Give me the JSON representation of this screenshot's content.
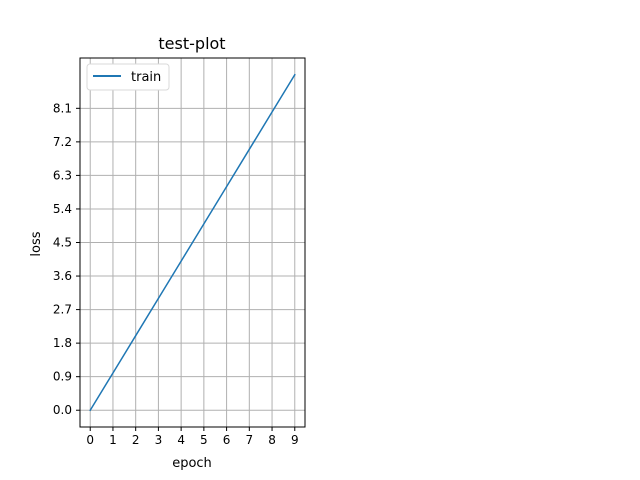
{
  "chart_data": {
    "type": "line",
    "title": "test-plot",
    "xlabel": "epoch",
    "ylabel": "loss",
    "x": [
      0,
      1,
      2,
      3,
      4,
      5,
      6,
      7,
      8,
      9
    ],
    "series": [
      {
        "name": "train",
        "color": "#1f77b4",
        "values": [
          0,
          1,
          2,
          3,
          4,
          5,
          6,
          7,
          8,
          9
        ]
      }
    ],
    "x_ticks": [
      0,
      1,
      2,
      3,
      4,
      5,
      6,
      7,
      8,
      9
    ],
    "y_ticks": [
      "0.0",
      "0.9",
      "1.8",
      "2.7",
      "3.6",
      "4.5",
      "5.4",
      "6.3",
      "7.2",
      "8.1"
    ],
    "xlim": [
      -0.45,
      9.45
    ],
    "ylim": [
      -0.45,
      9.45
    ],
    "grid": true,
    "legend_position": "top-left"
  }
}
